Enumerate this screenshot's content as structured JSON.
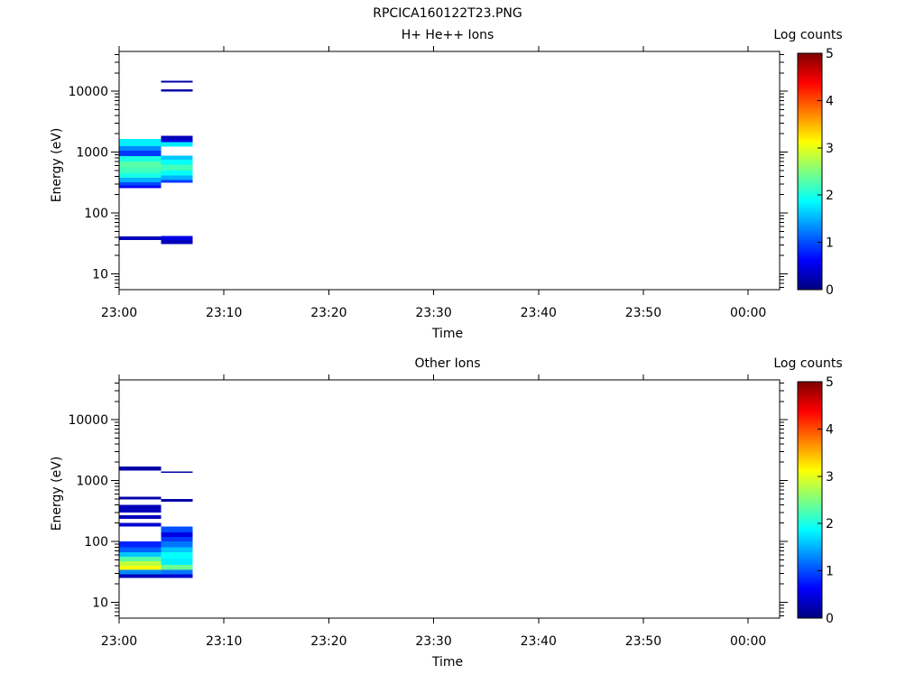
{
  "figure": {
    "title": "RPCICA160122T23.PNG"
  },
  "colorbar": {
    "stops": [
      "#00007f",
      "#0000ff",
      "#007fff",
      "#00ffff",
      "#7fff7f",
      "#ffff00",
      "#ff7f00",
      "#ff0000",
      "#7f0000"
    ]
  },
  "chart_data": [
    {
      "type": "heatmap",
      "title": "H+ He++ Ions",
      "xlabel": "Time",
      "ylabel": "Energy (eV)",
      "colorbar_label": "Log counts",
      "colorbar_range": [
        0,
        5
      ],
      "colorbar_ticks": [
        "0",
        "1",
        "2",
        "3",
        "4",
        "5"
      ],
      "yscale": "log",
      "ylim": [
        5.5,
        45000
      ],
      "y_ticks": [
        10,
        100,
        1000,
        10000
      ],
      "y_tick_labels": [
        "10",
        "100",
        "1000",
        "10000"
      ],
      "xlim": [
        "23:00",
        "00:03"
      ],
      "x_ticks": [
        "23:00",
        "23:10",
        "23:20",
        "23:30",
        "23:40",
        "23:50",
        "00:00"
      ],
      "cells": [
        {
          "t0": "23:00",
          "t1": "23:04",
          "e0": 36,
          "e1": 41,
          "value": 0.3
        },
        {
          "t0": "23:00",
          "t1": "23:04",
          "e0": 255,
          "e1": 285,
          "value": 0.6
        },
        {
          "t0": "23:00",
          "t1": "23:04",
          "e0": 285,
          "e1": 320,
          "value": 1.0
        },
        {
          "t0": "23:00",
          "t1": "23:04",
          "e0": 320,
          "e1": 380,
          "value": 1.5
        },
        {
          "t0": "23:00",
          "t1": "23:04",
          "e0": 380,
          "e1": 460,
          "value": 2.0
        },
        {
          "t0": "23:00",
          "t1": "23:04",
          "e0": 460,
          "e1": 560,
          "value": 2.2
        },
        {
          "t0": "23:00",
          "t1": "23:04",
          "e0": 560,
          "e1": 700,
          "value": 2.3
        },
        {
          "t0": "23:00",
          "t1": "23:04",
          "e0": 700,
          "e1": 860,
          "value": 2.0
        },
        {
          "t0": "23:00",
          "t1": "23:04",
          "e0": 860,
          "e1": 1050,
          "value": 0.9
        },
        {
          "t0": "23:00",
          "t1": "23:04",
          "e0": 1050,
          "e1": 1250,
          "value": 1.3
        },
        {
          "t0": "23:00",
          "t1": "23:04",
          "e0": 1250,
          "e1": 1650,
          "value": 1.8
        },
        {
          "t0": "23:04",
          "t1": "23:07",
          "e0": 31,
          "e1": 36,
          "value": 0.3
        },
        {
          "t0": "23:04",
          "t1": "23:07",
          "e0": 36,
          "e1": 42,
          "value": 0.5
        },
        {
          "t0": "23:04",
          "t1": "23:07",
          "e0": 315,
          "e1": 350,
          "value": 0.9
        },
        {
          "t0": "23:04",
          "t1": "23:07",
          "e0": 350,
          "e1": 410,
          "value": 1.5
        },
        {
          "t0": "23:04",
          "t1": "23:07",
          "e0": 410,
          "e1": 500,
          "value": 1.9
        },
        {
          "t0": "23:04",
          "t1": "23:07",
          "e0": 500,
          "e1": 620,
          "value": 2.2
        },
        {
          "t0": "23:04",
          "t1": "23:07",
          "e0": 620,
          "e1": 750,
          "value": 1.9
        },
        {
          "t0": "23:04",
          "t1": "23:07",
          "e0": 750,
          "e1": 870,
          "value": 1.6
        },
        {
          "t0": "23:04",
          "t1": "23:07",
          "e0": 1230,
          "e1": 1450,
          "value": 1.8
        },
        {
          "t0": "23:04",
          "t1": "23:07",
          "e0": 1450,
          "e1": 1600,
          "value": 0.5
        },
        {
          "t0": "23:04",
          "t1": "23:07",
          "e0": 1600,
          "e1": 1850,
          "value": 0.3
        },
        {
          "t0": "23:04",
          "t1": "23:07",
          "e0": 9800,
          "e1": 10800,
          "value": 0.2
        },
        {
          "t0": "23:04",
          "t1": "23:07",
          "e0": 13800,
          "e1": 14800,
          "value": 0.2
        }
      ]
    },
    {
      "type": "heatmap",
      "title": "Other Ions",
      "xlabel": "Time",
      "ylabel": "Energy (eV)",
      "colorbar_label": "Log counts",
      "colorbar_range": [
        0,
        5
      ],
      "colorbar_ticks": [
        "0",
        "1",
        "2",
        "3",
        "4",
        "5"
      ],
      "yscale": "log",
      "ylim": [
        5.5,
        45000
      ],
      "y_ticks": [
        10,
        100,
        1000,
        10000
      ],
      "y_tick_labels": [
        "10",
        "100",
        "1000",
        "10000"
      ],
      "xlim": [
        "23:00",
        "00:03"
      ],
      "x_ticks": [
        "23:00",
        "23:10",
        "23:20",
        "23:30",
        "23:40",
        "23:50",
        "00:00"
      ],
      "cells": [
        {
          "t0": "23:00",
          "t1": "23:04",
          "e0": 25,
          "e1": 29,
          "value": 0.3
        },
        {
          "t0": "23:00",
          "t1": "23:04",
          "e0": 29,
          "e1": 34,
          "value": 1.3
        },
        {
          "t0": "23:00",
          "t1": "23:04",
          "e0": 34,
          "e1": 40,
          "value": 3.1
        },
        {
          "t0": "23:00",
          "t1": "23:04",
          "e0": 40,
          "e1": 47,
          "value": 2.8
        },
        {
          "t0": "23:00",
          "t1": "23:04",
          "e0": 47,
          "e1": 56,
          "value": 2.3
        },
        {
          "t0": "23:00",
          "t1": "23:04",
          "e0": 56,
          "e1": 66,
          "value": 1.6
        },
        {
          "t0": "23:00",
          "t1": "23:04",
          "e0": 66,
          "e1": 80,
          "value": 1.1
        },
        {
          "t0": "23:00",
          "t1": "23:04",
          "e0": 80,
          "e1": 100,
          "value": 0.8
        },
        {
          "t0": "23:00",
          "t1": "23:04",
          "e0": 175,
          "e1": 200,
          "value": 0.4
        },
        {
          "t0": "23:00",
          "t1": "23:04",
          "e0": 235,
          "e1": 270,
          "value": 0.3
        },
        {
          "t0": "23:00",
          "t1": "23:04",
          "e0": 300,
          "e1": 400,
          "value": 0.3
        },
        {
          "t0": "23:00",
          "t1": "23:04",
          "e0": 490,
          "e1": 540,
          "value": 0.2
        },
        {
          "t0": "23:00",
          "t1": "23:04",
          "e0": 1450,
          "e1": 1700,
          "value": 0.2
        },
        {
          "t0": "23:04",
          "t1": "23:07",
          "e0": 25,
          "e1": 29,
          "value": 0.4
        },
        {
          "t0": "23:04",
          "t1": "23:07",
          "e0": 29,
          "e1": 34,
          "value": 1.2
        },
        {
          "t0": "23:04",
          "t1": "23:07",
          "e0": 34,
          "e1": 41,
          "value": 2.4
        },
        {
          "t0": "23:04",
          "t1": "23:07",
          "e0": 41,
          "e1": 52,
          "value": 1.8
        },
        {
          "t0": "23:04",
          "t1": "23:07",
          "e0": 52,
          "e1": 66,
          "value": 1.9
        },
        {
          "t0": "23:04",
          "t1": "23:07",
          "e0": 66,
          "e1": 80,
          "value": 1.6
        },
        {
          "t0": "23:04",
          "t1": "23:07",
          "e0": 80,
          "e1": 100,
          "value": 1.2
        },
        {
          "t0": "23:04",
          "t1": "23:07",
          "e0": 100,
          "e1": 118,
          "value": 0.9
        },
        {
          "t0": "23:04",
          "t1": "23:07",
          "e0": 118,
          "e1": 140,
          "value": 0.5
        },
        {
          "t0": "23:04",
          "t1": "23:07",
          "e0": 140,
          "e1": 175,
          "value": 1.0
        },
        {
          "t0": "23:04",
          "t1": "23:07",
          "e0": 450,
          "e1": 500,
          "value": 0.2
        },
        {
          "t0": "23:04",
          "t1": "23:07",
          "e0": 1330,
          "e1": 1420,
          "value": 0.2
        }
      ]
    }
  ]
}
